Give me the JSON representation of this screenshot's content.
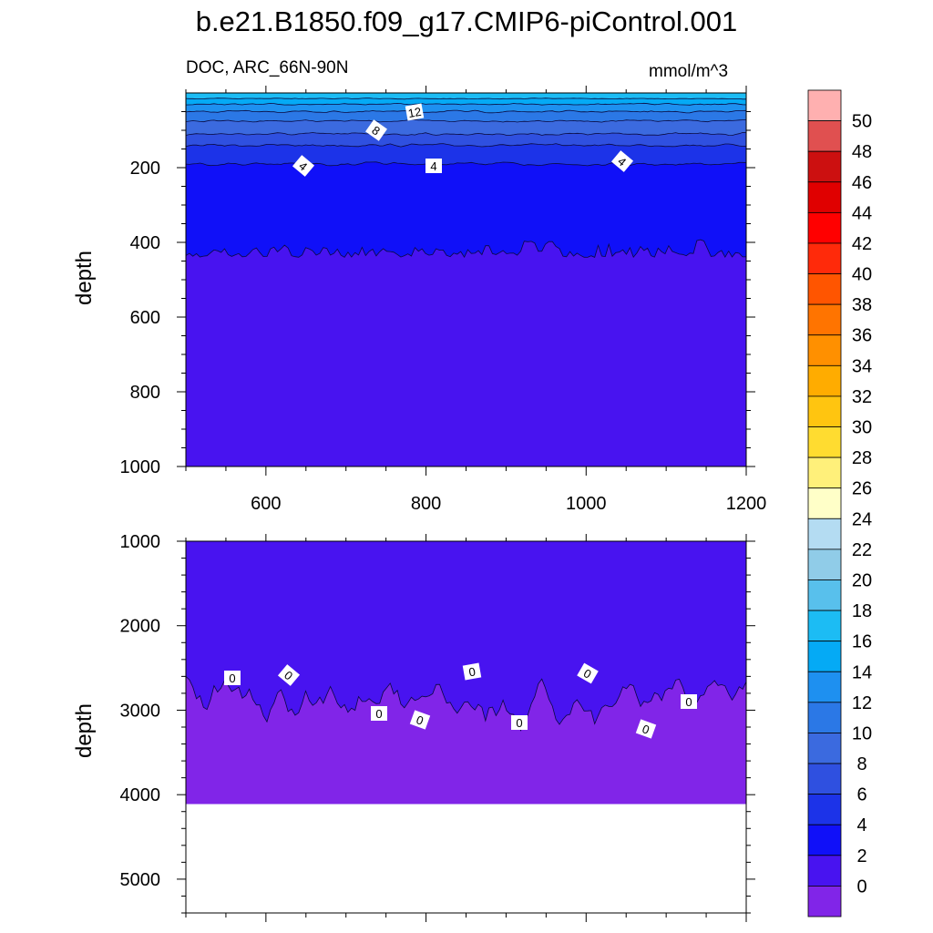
{
  "title": "b.e21.B1850.f09_g17.CMIP6-piControl.001",
  "left_label": "DOC, ARC_66N-90N",
  "right_label": "mmol/m^3",
  "colors": {
    "below_0": "#8125e8",
    "band_0_2": "#4813f0",
    "band_2_4": "#1010f8",
    "band_4_6": "#1c33e8",
    "band_6_8": "#2f50e0",
    "band_8_10": "#3b6adf",
    "band_10_12": "#2b78e6",
    "band_12_14": "#1e90f0",
    "band_14_16": "#05aaf5",
    "band_16_18": "#1cbcf4"
  },
  "chart_data": [
    {
      "type": "contour",
      "panel": "upper",
      "x": [
        500,
        1200
      ],
      "ylabel": "depth",
      "ylim": [
        1000,
        0
      ],
      "y_reversed": true,
      "xticks": [
        "600",
        "800",
        "1000",
        "1200"
      ],
      "yticks": [
        "200",
        "400",
        "600",
        "800",
        "1000"
      ],
      "levels_shown": [
        4,
        6,
        8,
        10,
        12,
        14,
        16
      ],
      "contour_labels": [
        "12",
        "8",
        "4",
        "4",
        "4"
      ],
      "iso_depths_approx": {
        "16": 15,
        "14": 30,
        "12": 50,
        "10": 75,
        "8": 110,
        "6": 140,
        "4": 190,
        "2": 420
      }
    },
    {
      "type": "contour",
      "panel": "lower",
      "x": [
        500,
        1200
      ],
      "ylabel": "depth",
      "ylim": [
        5400,
        1000
      ],
      "y_reversed": true,
      "xticks": [],
      "yticks": [
        "1000",
        "2000",
        "3000",
        "4000",
        "5000"
      ],
      "levels_shown": [
        0
      ],
      "contour_labels": [
        "0",
        "0",
        "0",
        "0",
        "0",
        "0",
        "0",
        "0",
        "0",
        "0"
      ],
      "iso_depths_approx": {
        "0": 2900
      },
      "bottom_depth": 4110
    }
  ],
  "colorbar": {
    "labels": [
      "50",
      "48",
      "46",
      "44",
      "42",
      "40",
      "38",
      "36",
      "34",
      "32",
      "30",
      "28",
      "26",
      "24",
      "22",
      "20",
      "18",
      "16",
      "14",
      "12",
      "10",
      "8",
      "6",
      "4",
      "2",
      "0"
    ],
    "colors": [
      "#ffb0b0",
      "#e05050",
      "#cc1010",
      "#e00000",
      "#ff0000",
      "#ff2a0a",
      "#ff5500",
      "#ff7400",
      "#ff9000",
      "#ffac00",
      "#ffc510",
      "#ffdc30",
      "#fff07a",
      "#ffffc8",
      "#b4dcf2",
      "#90cce8",
      "#58c0ec",
      "#1cbcf4",
      "#05aaf5",
      "#1e90f0",
      "#2b78e6",
      "#3b6adf",
      "#2f50e0",
      "#1c33e8",
      "#1010f8",
      "#4813f0",
      "#8125e8"
    ]
  }
}
